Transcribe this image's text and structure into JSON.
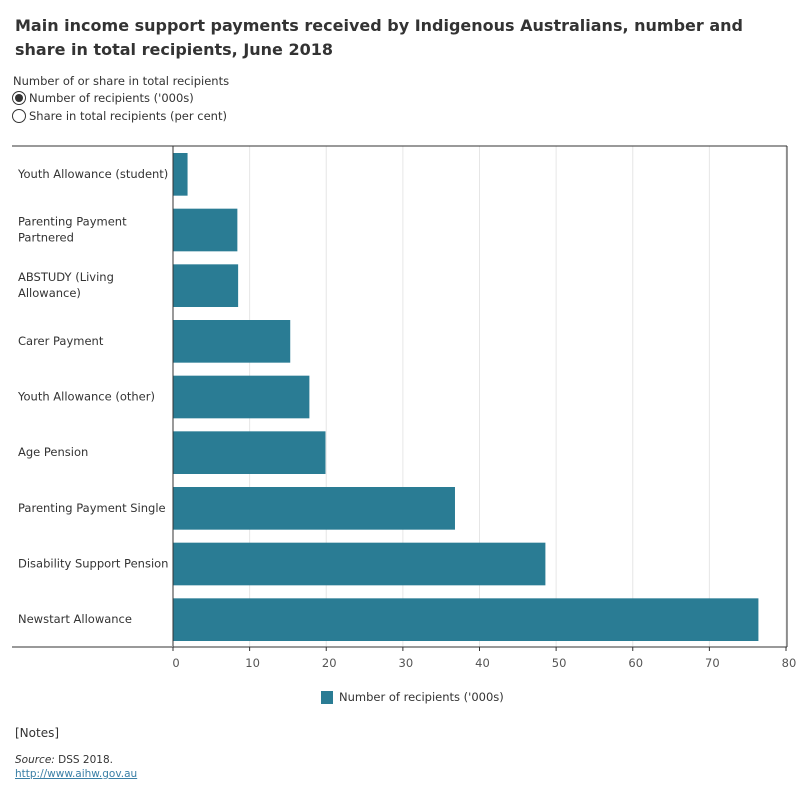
{
  "title": "Main income support payments received by Indigenous Australians, number and share in total recipients, June 2018",
  "control": {
    "label": "Number of or share in total recipients",
    "options": [
      {
        "label": "Number of recipients ('000s)",
        "selected": true
      },
      {
        "label": "Share in total recipients (per cent)",
        "selected": false
      }
    ]
  },
  "chart_data": {
    "type": "bar",
    "orientation": "horizontal",
    "categories": [
      "Youth Allowance (student)",
      "Parenting Payment Partnered",
      "ABSTUDY (Living Allowance)",
      "Carer Payment",
      "Youth Allowance (other)",
      "Age Pension",
      "Parenting Payment Single",
      "Disability Support Pension",
      "Newstart Allowance"
    ],
    "category_lines": [
      [
        "Youth Allowance (student)"
      ],
      [
        "Parenting Payment",
        "Partnered"
      ],
      [
        "ABSTUDY (Living",
        "Allowance)"
      ],
      [
        "Carer Payment"
      ],
      [
        "Youth Allowance (other)"
      ],
      [
        "Age Pension"
      ],
      [
        "Parenting Payment Single"
      ],
      [
        "Disability Support Pension"
      ],
      [
        "Newstart Allowance"
      ]
    ],
    "series": [
      {
        "name": "Number of recipients ('000s)",
        "color": "#2a7c94",
        "values": [
          1.9,
          8.4,
          8.5,
          15.3,
          17.8,
          19.9,
          36.8,
          48.6,
          76.4
        ]
      }
    ],
    "xlim": [
      0,
      80
    ],
    "xticks": [
      0,
      10,
      20,
      30,
      40,
      50,
      60,
      70,
      80
    ],
    "grid": true,
    "legend_position": "bottom-center"
  },
  "legend": {
    "label": "Number of recipients ('000s)"
  },
  "notes": "[Notes]",
  "source": {
    "prefix": "Source:",
    "text": " DSS 2018."
  },
  "link": "http://www.aihw.gov.au"
}
